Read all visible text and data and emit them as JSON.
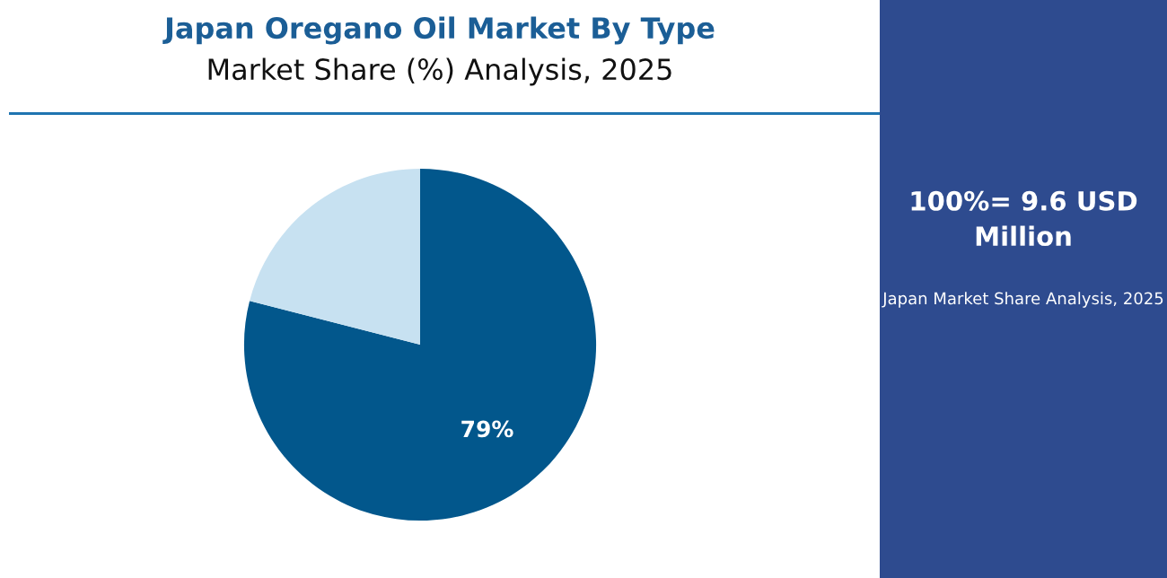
{
  "chart_data": {
    "type": "pie",
    "title": "Japan Oregano Oil Market By Type",
    "subtitle": "Market Share (%) Analysis, 2025",
    "categories": [
      null,
      null
    ],
    "values": [
      79,
      21
    ],
    "colors": [
      "#02578c",
      "#c7e1f1"
    ],
    "value_labels": [
      "79%",
      null
    ],
    "annotations": [
      "100%= 9.6 USD Million",
      "Japan Market Share Analysis, 2025"
    ]
  }
}
